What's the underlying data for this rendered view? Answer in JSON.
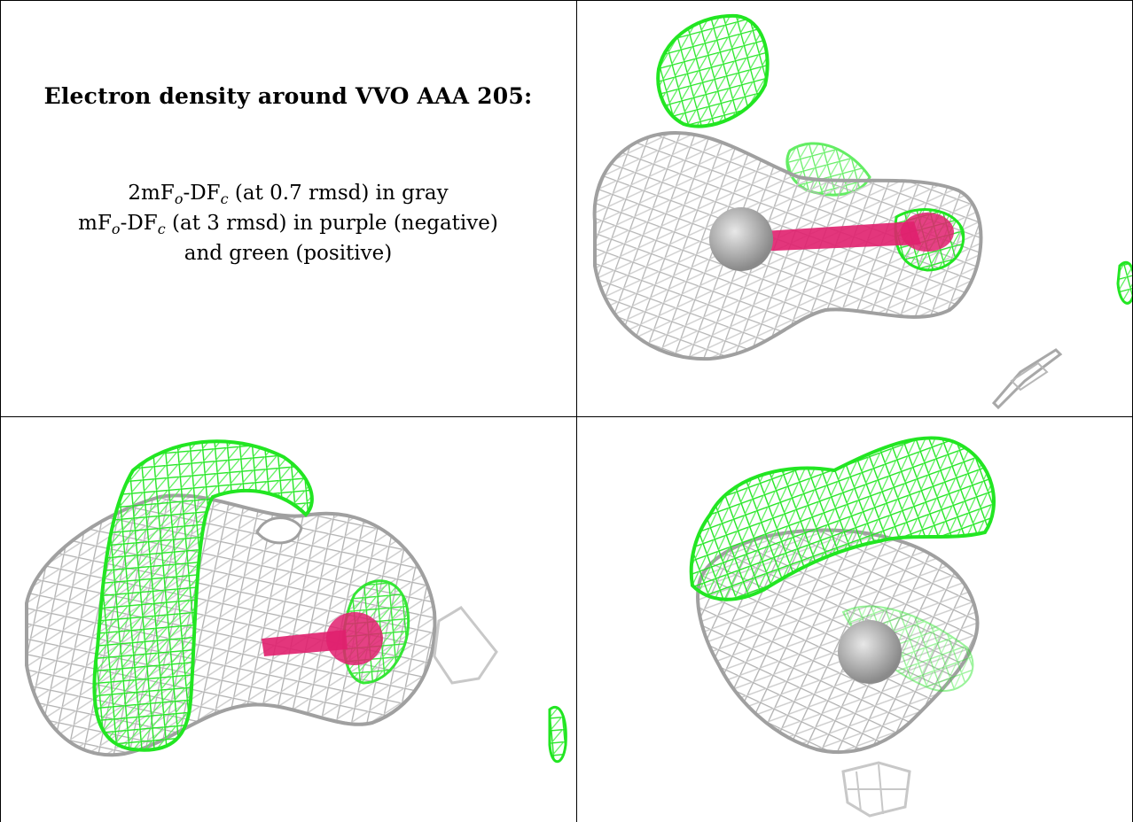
{
  "figure": {
    "title": "Electron density around VVO AAA 205:",
    "legend": {
      "line1": {
        "pre": "2mF",
        "sub1": "o",
        "mid": "-DF",
        "sub2": "c",
        "post": " (at 0.7 rmsd) in gray"
      },
      "line2": {
        "pre": "mF",
        "sub1": "o",
        "mid": "-DF",
        "sub2": "c",
        "post": " (at 3 rmsd) in purple (negative)"
      },
      "line3": "and green (positive)"
    },
    "colors": {
      "map_2fofc": "#b8b8b8",
      "map_fofc_positive": "#22e622",
      "map_fofc_negative": "#e0206e",
      "atom": "#a8a8a8",
      "border": "#000000"
    },
    "panels": [
      {
        "name": "view-1",
        "content": "density-mesh-render"
      },
      {
        "name": "view-2",
        "content": "density-mesh-render"
      },
      {
        "name": "view-3",
        "content": "density-mesh-render"
      }
    ]
  }
}
